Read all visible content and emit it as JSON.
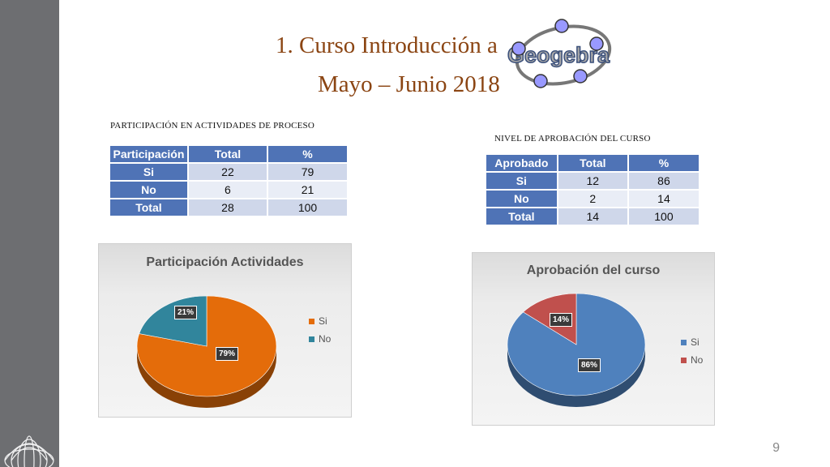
{
  "slide": {
    "title_line1": "1. Curso Introducción a",
    "title_line2": "Mayo – Junio 2018",
    "logo_text": "Geogebra",
    "page_number": "9"
  },
  "participation": {
    "label": "PARTICIPACIÓN EN ACTIVIDADES DE PROCESO",
    "headers": [
      "Participación",
      "Total",
      "%"
    ],
    "rows": [
      [
        "Si",
        "22",
        "79"
      ],
      [
        "No",
        "6",
        "21"
      ],
      [
        "Total",
        "28",
        "100"
      ]
    ]
  },
  "approval": {
    "label": "NIVEL DE APROBACIÓN DEL CURSO",
    "headers": [
      "Aprobado",
      "Total",
      "%"
    ],
    "rows": [
      [
        "Si",
        "12",
        "86"
      ],
      [
        "No",
        "2",
        "14"
      ],
      [
        "Total",
        "14",
        "100"
      ]
    ]
  },
  "chart_data": [
    {
      "type": "pie",
      "title": "Participación Actividades",
      "categories": [
        "Si",
        "No"
      ],
      "values": [
        79,
        21
      ],
      "labels": [
        "79%",
        "21%"
      ],
      "colors": [
        "#e46c0a",
        "#31859c"
      ],
      "legend": "right"
    },
    {
      "type": "pie",
      "title": "Aprobación del curso",
      "categories": [
        "Si",
        "No"
      ],
      "values": [
        86,
        14
      ],
      "labels": [
        "86%",
        "14%"
      ],
      "colors": [
        "#4f81bd",
        "#c0504d"
      ],
      "legend": "right"
    }
  ]
}
